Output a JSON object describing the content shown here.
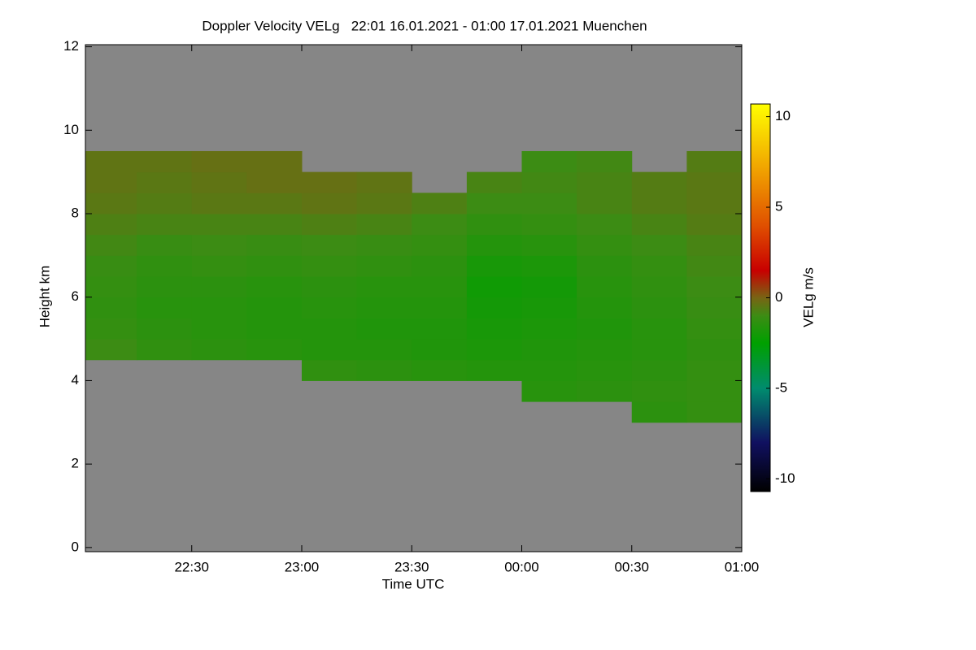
{
  "chart_data": {
    "type": "heatmap",
    "title": "Doppler Velocity VELg   22:01 16.01.2021 - 01:00 17.01.2021 Muenchen",
    "x_label": "Time UTC",
    "y_label": "Height km",
    "colorbar_label": "VELg m/s",
    "background_color": "#868686",
    "xlim": [
      22.0167,
      25.0
    ],
    "ylim": [
      -0.1,
      12.05
    ],
    "zlim": [
      -10.7,
      10.7
    ],
    "xticks": [
      {
        "value": 22.5,
        "label": "22:30"
      },
      {
        "value": 23.0,
        "label": "23:00"
      },
      {
        "value": 23.5,
        "label": "23:30"
      },
      {
        "value": 24.0,
        "label": "00:00"
      },
      {
        "value": 24.5,
        "label": "00:30"
      },
      {
        "value": 25.0,
        "label": "01:00"
      }
    ],
    "yticks": [
      0,
      2,
      4,
      6,
      8,
      10,
      12
    ],
    "zticks": [
      -10,
      -5,
      0,
      5,
      10
    ],
    "colormap": [
      {
        "value": -10.7,
        "color": "#000000"
      },
      {
        "value": -8,
        "color": "#101060"
      },
      {
        "value": -5,
        "color": "#008c6e"
      },
      {
        "value": -2.5,
        "color": "#00a000"
      },
      {
        "value": -1,
        "color": "#3c8c14"
      },
      {
        "value": 0,
        "color": "#786414"
      },
      {
        "value": 1.5,
        "color": "#c80000"
      },
      {
        "value": 4,
        "color": "#e05000"
      },
      {
        "value": 7,
        "color": "#f0a000"
      },
      {
        "value": 10.7,
        "color": "#ffff00"
      }
    ],
    "x_bins": [
      22.0167,
      22.25,
      22.5,
      22.75,
      23.0,
      23.25,
      23.5,
      23.75,
      24.0,
      24.25,
      24.5,
      24.75,
      25.0
    ],
    "y_bins": [
      0,
      0.5,
      1,
      1.5,
      2,
      2.5,
      3,
      3.5,
      4,
      4.5,
      5,
      5.5,
      6,
      6.5,
      7,
      7.5,
      8,
      8.5,
      9,
      9.5,
      10,
      10.5,
      11,
      11.5,
      12
    ],
    "values": [
      [
        null,
        null,
        null,
        null,
        null,
        null,
        null,
        null,
        null,
        null,
        null,
        null
      ],
      [
        null,
        null,
        null,
        null,
        null,
        null,
        null,
        null,
        null,
        null,
        null,
        null
      ],
      [
        null,
        null,
        null,
        null,
        null,
        null,
        null,
        null,
        null,
        null,
        null,
        null
      ],
      [
        null,
        null,
        null,
        null,
        null,
        null,
        null,
        null,
        null,
        null,
        null,
        null
      ],
      [
        null,
        null,
        null,
        null,
        null,
        null,
        null,
        null,
        null,
        null,
        null,
        null
      ],
      [
        null,
        null,
        null,
        null,
        null,
        null,
        null,
        null,
        null,
        null,
        null,
        null
      ],
      [
        null,
        null,
        null,
        null,
        null,
        null,
        null,
        null,
        null,
        null,
        -1.4,
        -1.2
      ],
      [
        null,
        null,
        null,
        null,
        null,
        null,
        null,
        null,
        -1.5,
        -1.4,
        -1.3,
        -1.2
      ],
      [
        null,
        null,
        null,
        null,
        -1.3,
        -1.4,
        -1.5,
        -1.6,
        -1.6,
        -1.5,
        -1.4,
        -1.2
      ],
      [
        -1.0,
        -1.3,
        -1.4,
        -1.5,
        -1.6,
        -1.6,
        -1.7,
        -1.8,
        -1.7,
        -1.6,
        -1.5,
        -1.3
      ],
      [
        -1.2,
        -1.4,
        -1.5,
        -1.6,
        -1.6,
        -1.7,
        -1.7,
        -1.9,
        -1.8,
        -1.7,
        -1.5,
        -1.2
      ],
      [
        -1.3,
        -1.5,
        -1.5,
        -1.6,
        -1.5,
        -1.6,
        -1.6,
        -2.0,
        -1.9,
        -1.6,
        -1.4,
        -1.1
      ],
      [
        -1.2,
        -1.4,
        -1.4,
        -1.5,
        -1.4,
        -1.5,
        -1.5,
        -2.1,
        -2.0,
        -1.5,
        -1.3,
        -1.0
      ],
      [
        -1.1,
        -1.3,
        -1.2,
        -1.3,
        -1.2,
        -1.3,
        -1.4,
        -1.9,
        -1.8,
        -1.4,
        -1.2,
        -0.9
      ],
      [
        -0.9,
        -1.1,
        -1.0,
        -1.1,
        -1.0,
        -1.1,
        -1.2,
        -1.6,
        -1.5,
        -1.2,
        -1.0,
        -0.8
      ],
      [
        -0.7,
        -0.8,
        -0.8,
        -0.8,
        -0.7,
        -0.8,
        -1.0,
        -1.3,
        -1.2,
        -1.0,
        -0.8,
        -0.6
      ],
      [
        -0.5,
        -0.6,
        -0.5,
        -0.5,
        -0.4,
        -0.5,
        -0.7,
        -1.0,
        -1.0,
        -0.8,
        -0.6,
        -0.5
      ],
      [
        -0.4,
        -0.5,
        -0.4,
        -0.3,
        -0.3,
        -0.4,
        null,
        -0.8,
        -0.9,
        -0.8,
        -0.6,
        -0.5
      ],
      [
        -0.4,
        -0.4,
        -0.3,
        -0.3,
        null,
        null,
        null,
        null,
        -1.0,
        -0.9,
        null,
        -0.6
      ],
      [
        null,
        null,
        null,
        null,
        null,
        null,
        null,
        null,
        null,
        null,
        null,
        null
      ],
      [
        null,
        null,
        null,
        null,
        null,
        null,
        null,
        null,
        null,
        null,
        null,
        null
      ],
      [
        null,
        null,
        null,
        null,
        null,
        null,
        null,
        null,
        null,
        null,
        null,
        null
      ],
      [
        null,
        null,
        null,
        null,
        null,
        null,
        null,
        null,
        null,
        null,
        null,
        null
      ],
      [
        null,
        null,
        null,
        null,
        null,
        null,
        null,
        null,
        null,
        null,
        null,
        null
      ]
    ]
  }
}
